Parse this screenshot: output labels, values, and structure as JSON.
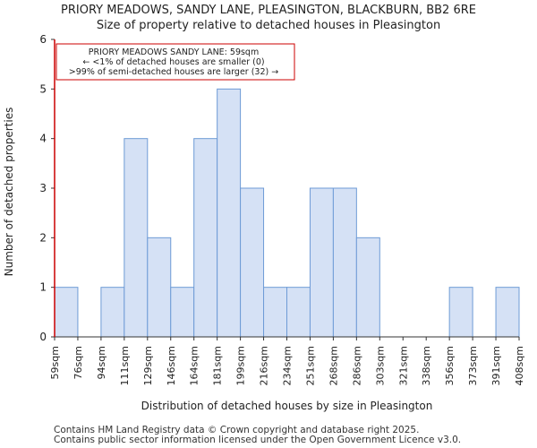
{
  "title": "PRIORY MEADOWS, SANDY LANE, PLEASINGTON, BLACKBURN, BB2 6RE",
  "subtitle": "Size of property relative to detached houses in Pleasington",
  "footer": {
    "line1": "Contains HM Land Registry data © Crown copyright and database right 2025.",
    "line2": "Contains public sector information licensed under the Open Government Licence v3.0."
  },
  "colors": {
    "bar_fill": "#d5e1f5",
    "bar_stroke": "#6e9bd6",
    "marker": "#cc0000",
    "annotation_border": "#cc0000"
  },
  "chart_data": {
    "type": "bar",
    "xlabel": "Distribution of detached houses by size in Pleasington",
    "ylabel": "Number of detached properties",
    "ylim": [
      0,
      6
    ],
    "yticks": [
      0,
      1,
      2,
      3,
      4,
      5,
      6
    ],
    "bin_edges": [
      "59sqm",
      "76sqm",
      "94sqm",
      "111sqm",
      "129sqm",
      "146sqm",
      "164sqm",
      "181sqm",
      "199sqm",
      "216sqm",
      "234sqm",
      "251sqm",
      "268sqm",
      "286sqm",
      "303sqm",
      "321sqm",
      "338sqm",
      "356sqm",
      "373sqm",
      "391sqm",
      "408sqm"
    ],
    "values": [
      1,
      0,
      1,
      4,
      2,
      1,
      4,
      5,
      3,
      1,
      1,
      3,
      3,
      2,
      0,
      0,
      0,
      1,
      0,
      1
    ],
    "marker_value": "59sqm",
    "annotation": {
      "line1": "PRIORY MEADOWS SANDY LANE: 59sqm",
      "line2": "← <1% of detached houses are smaller (0)",
      "line3": ">99% of semi-detached houses are larger (32) →"
    },
    "grid": false
  }
}
